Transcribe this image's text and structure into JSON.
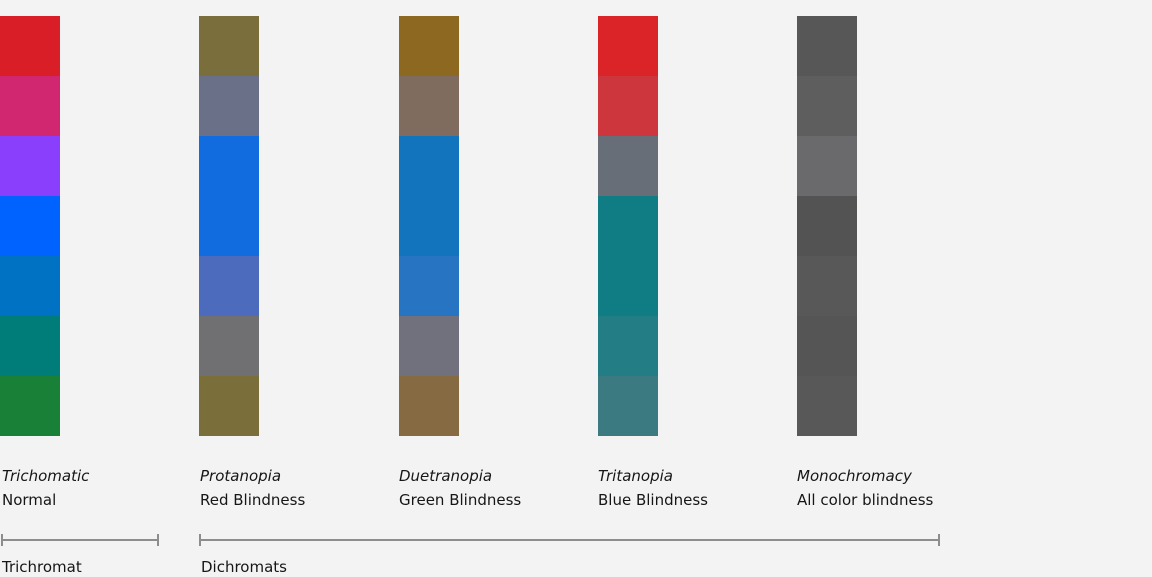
{
  "columns": [
    {
      "title": "Trichomatic",
      "subtitle": "Normal",
      "colors": [
        "#da1e28",
        "#d12771",
        "#8a3ffc",
        "#0062ff",
        "#0072c3",
        "#007d79",
        "#198038"
      ]
    },
    {
      "title": "Protanopia",
      "subtitle": "Red Blindness",
      "colors": [
        "#7a6e3c",
        "#6b7089",
        "#116cdf",
        "#116cdf",
        "#4d6bbd",
        "#706f72",
        "#7a6e3a"
      ]
    },
    {
      "title": "Duetranopia",
      "subtitle": "Green Blindness",
      "colors": [
        "#8c6820",
        "#806c5e",
        "#1174bc",
        "#1174bc",
        "#2774c2",
        "#71707d",
        "#856a42"
      ]
    },
    {
      "title": "Tritanopia",
      "subtitle": "Blue Blindness",
      "colors": [
        "#da2428",
        "#cd363c",
        "#676e77",
        "#107c83",
        "#107c83",
        "#237d84",
        "#3c7a82"
      ]
    },
    {
      "title": "Monochromacy",
      "subtitle": "All color blindness",
      "colors": [
        "#575757",
        "#5e5e5e",
        "#6a6a6c",
        "#535353",
        "#585858",
        "#555555",
        "#585858"
      ]
    }
  ],
  "groups": [
    {
      "label": "Trichromat"
    },
    {
      "label": "Dichromats"
    }
  ]
}
